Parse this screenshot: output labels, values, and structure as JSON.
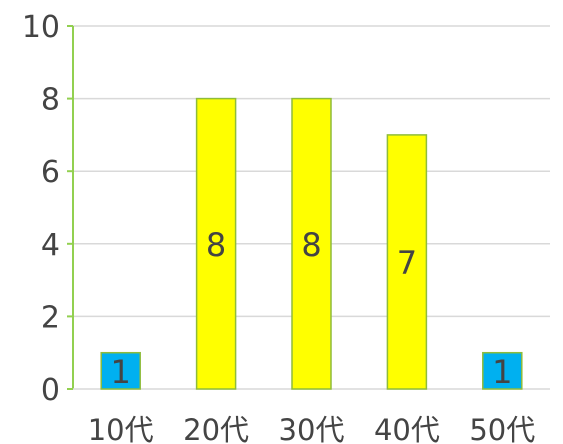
{
  "chart_data": {
    "type": "bar",
    "categories": [
      "10代",
      "20代",
      "30代",
      "40代",
      "50代"
    ],
    "values": [
      1,
      8,
      8,
      7,
      1
    ],
    "data_labels": [
      "1",
      "8",
      "8",
      "7",
      "1"
    ],
    "colors": [
      "#00b0f0",
      "#ffff00",
      "#ffff00",
      "#ffff00",
      "#00b0f0"
    ],
    "yticks": [
      0,
      2,
      4,
      6,
      8,
      10
    ],
    "ylim": [
      0,
      10
    ],
    "grid": true,
    "legend": "none",
    "title": "",
    "xlabel": "",
    "ylabel": ""
  }
}
